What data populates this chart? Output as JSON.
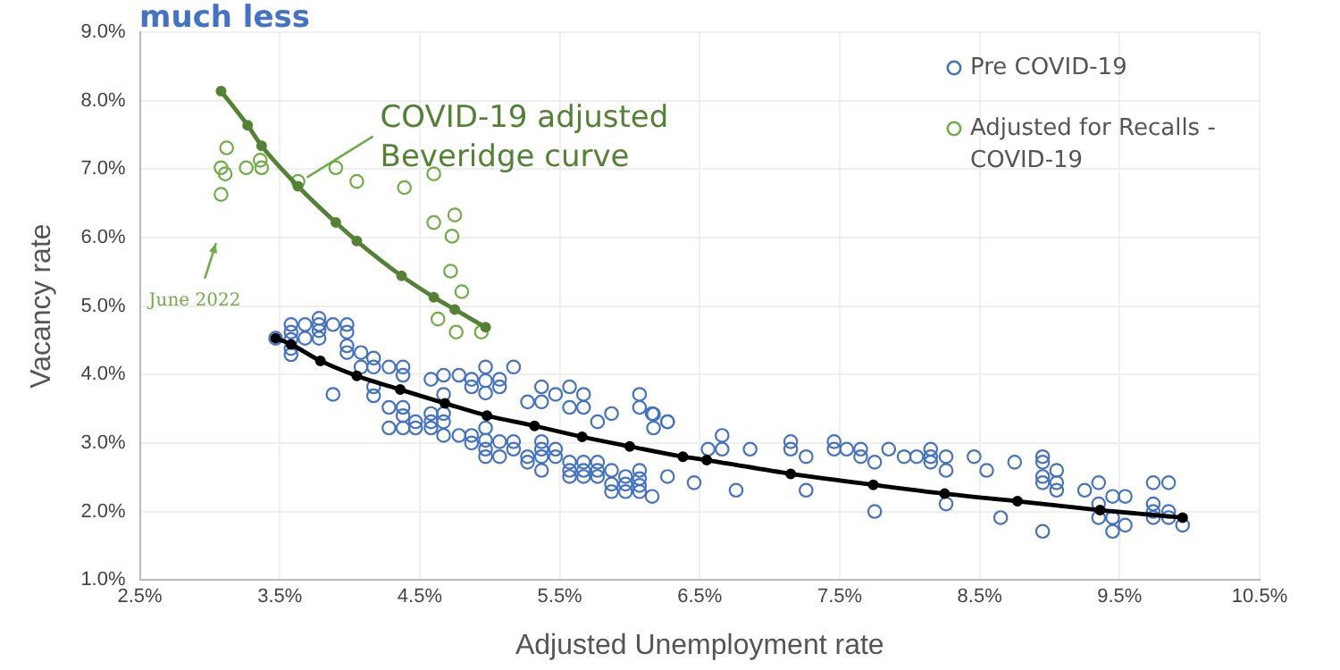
{
  "chart_data": {
    "type": "scatter",
    "title": "much less",
    "xlabel": "Adjusted Unemployment rate",
    "ylabel": "Vacancy rate",
    "xlim": [
      2.5,
      10.5
    ],
    "ylim": [
      1.0,
      9.0
    ],
    "xticks": [
      {
        "value": 2.5,
        "label": "2.5%"
      },
      {
        "value": 3.5,
        "label": "3.5%"
      },
      {
        "value": 4.5,
        "label": "4.5%"
      },
      {
        "value": 5.5,
        "label": "5.5%"
      },
      {
        "value": 6.5,
        "label": "6.5%"
      },
      {
        "value": 7.5,
        "label": "7.5%"
      },
      {
        "value": 8.5,
        "label": "8.5%"
      },
      {
        "value": 9.5,
        "label": "9.5%"
      },
      {
        "value": 10.5,
        "label": "10.5%"
      }
    ],
    "yticks": [
      {
        "value": 1.0,
        "label": "1.0%"
      },
      {
        "value": 2.0,
        "label": "2.0%"
      },
      {
        "value": 3.0,
        "label": "3.0%"
      },
      {
        "value": 4.0,
        "label": "4.0%"
      },
      {
        "value": 5.0,
        "label": "5.0%"
      },
      {
        "value": 6.0,
        "label": "6.0%"
      },
      {
        "value": 7.0,
        "label": "7.0%"
      },
      {
        "value": 8.0,
        "label": "8.0%"
      },
      {
        "value": 9.0,
        "label": "9.0%"
      }
    ],
    "grid": true,
    "legend": "top right",
    "marker": "circle",
    "annotations": [
      {
        "text": "COVID-19 adjusted Beveridge curve",
        "x": 3.63,
        "y": 6.8
      },
      "June 2022"
    ],
    "series": [
      {
        "name": "Pre COVID-19",
        "type": "scatter",
        "color": "#4472c4",
        "x": [
          3.47,
          3.58,
          3.58,
          3.58,
          3.58,
          3.58,
          3.68,
          3.68,
          3.78,
          3.78,
          3.78,
          3.78,
          3.88,
          3.88,
          3.98,
          3.98,
          3.98,
          3.98,
          4.08,
          4.08,
          4.17,
          4.17,
          4.17,
          4.17,
          4.28,
          4.28,
          4.28,
          4.38,
          4.38,
          4.38,
          4.38,
          4.38,
          4.47,
          4.47,
          4.58,
          4.58,
          4.58,
          4.58,
          4.67,
          4.67,
          4.67,
          4.67,
          4.67,
          4.78,
          4.78,
          4.87,
          4.87,
          4.87,
          4.87,
          4.97,
          4.97,
          4.97,
          4.97,
          4.97,
          4.97,
          4.97,
          5.07,
          5.07,
          5.07,
          5.07,
          5.17,
          5.17,
          5.17,
          5.27,
          5.27,
          5.27,
          5.37,
          5.37,
          5.37,
          5.37,
          5.37,
          5.37,
          5.47,
          5.47,
          5.47,
          5.57,
          5.57,
          5.57,
          5.57,
          5.57,
          5.67,
          5.67,
          5.67,
          5.67,
          5.67,
          5.77,
          5.77,
          5.77,
          5.77,
          5.87,
          5.87,
          5.87,
          5.87,
          5.97,
          5.97,
          5.97,
          6.07,
          6.07,
          6.07,
          6.07,
          6.07,
          6.07,
          6.16,
          6.16,
          6.27,
          6.27,
          6.17,
          6.17,
          6.27,
          6.46,
          6.56,
          6.66,
          6.66,
          6.76,
          6.86,
          7.15,
          7.15,
          7.26,
          7.26,
          7.46,
          7.46,
          7.55,
          7.65,
          7.65,
          7.75,
          7.75,
          7.85,
          7.96,
          8.05,
          8.15,
          8.15,
          8.15,
          8.26,
          8.26,
          8.26,
          8.46,
          8.55,
          8.65,
          8.75,
          8.95,
          8.95,
          8.95,
          8.95,
          8.95,
          9.05,
          9.05,
          9.05,
          9.25,
          9.35,
          9.35,
          9.35,
          9.45,
          9.45,
          9.45,
          9.54,
          9.54,
          9.74,
          9.74,
          9.74,
          9.74,
          9.85,
          9.85,
          9.85,
          9.95
        ],
        "values": [
          4.53,
          4.73,
          4.62,
          4.51,
          4.38,
          4.29,
          4.73,
          4.53,
          4.82,
          4.73,
          4.64,
          4.53,
          4.73,
          3.71,
          4.73,
          4.62,
          4.42,
          4.32,
          4.32,
          4.11,
          4.24,
          4.11,
          3.82,
          3.69,
          4.11,
          3.52,
          3.22,
          4.11,
          3.99,
          3.52,
          3.4,
          3.22,
          3.31,
          3.22,
          3.93,
          3.43,
          3.31,
          3.22,
          3.99,
          3.71,
          3.43,
          3.31,
          3.11,
          3.99,
          3.11,
          3.93,
          3.82,
          3.11,
          3.0,
          4.11,
          3.91,
          3.73,
          3.22,
          3.04,
          2.91,
          2.8,
          3.93,
          3.82,
          3.02,
          2.8,
          4.11,
          3.02,
          2.91,
          3.6,
          2.8,
          2.72,
          3.82,
          3.6,
          3.02,
          2.91,
          2.8,
          2.6,
          3.71,
          2.91,
          2.8,
          3.82,
          3.52,
          2.72,
          2.6,
          2.51,
          3.71,
          3.52,
          2.72,
          2.6,
          2.51,
          3.31,
          2.72,
          2.6,
          2.51,
          3.43,
          2.6,
          2.4,
          2.29,
          2.51,
          2.4,
          2.29,
          3.71,
          3.52,
          2.6,
          2.48,
          2.38,
          2.29,
          3.43,
          2.22,
          3.31,
          2.51,
          3.42,
          3.22,
          3.31,
          2.42,
          2.91,
          3.11,
          2.91,
          2.31,
          2.91,
          3.02,
          2.91,
          2.8,
          2.31,
          3.02,
          2.91,
          2.91,
          2.91,
          2.8,
          2.72,
          2.0,
          2.91,
          2.8,
          2.8,
          2.91,
          2.8,
          2.72,
          2.8,
          2.6,
          2.11,
          2.8,
          2.6,
          1.91,
          2.72,
          2.8,
          2.72,
          2.51,
          2.42,
          1.71,
          2.6,
          2.42,
          2.31,
          2.31,
          2.42,
          2.11,
          1.91,
          2.22,
          1.91,
          1.71,
          2.22,
          1.8,
          2.42,
          2.11,
          2.0,
          1.91,
          2.42,
          2.0,
          1.91,
          1.8
        ]
      },
      {
        "name": "Adjusted for Recalls - COVID-19",
        "type": "scatter",
        "color": "#70ad47",
        "x": [
          3.12,
          3.08,
          3.11,
          3.08,
          3.26,
          3.36,
          3.37,
          3.63,
          3.9,
          4.05,
          4.39,
          4.6,
          4.6,
          4.75,
          4.73,
          4.72,
          4.8,
          4.63,
          4.76,
          4.94
        ],
        "values": [
          7.31,
          7.02,
          6.93,
          6.63,
          7.02,
          7.13,
          7.02,
          6.82,
          7.02,
          6.82,
          6.73,
          6.93,
          6.22,
          6.33,
          6.02,
          5.51,
          5.21,
          4.81,
          4.62,
          4.62
        ]
      },
      {
        "type": "line",
        "color": "#000000",
        "x": [
          3.47,
          3.58,
          3.79,
          4.05,
          4.36,
          4.68,
          4.98,
          5.32,
          5.66,
          6.0,
          6.38,
          6.55,
          7.15,
          7.74,
          8.25,
          8.77,
          9.36,
          9.95
        ],
        "values": [
          4.53,
          4.44,
          4.2,
          3.98,
          3.78,
          3.58,
          3.4,
          3.25,
          3.09,
          2.95,
          2.8,
          2.75,
          2.55,
          2.39,
          2.26,
          2.15,
          2.02,
          1.91
        ]
      },
      {
        "type": "line",
        "color": "#548235",
        "x": [
          3.08,
          3.27,
          3.37,
          3.63,
          3.9,
          4.05,
          4.37,
          4.6,
          4.75,
          4.97
        ],
        "values": [
          8.14,
          7.64,
          7.34,
          6.75,
          6.22,
          5.95,
          5.44,
          5.13,
          4.95,
          4.69
        ]
      }
    ]
  }
}
